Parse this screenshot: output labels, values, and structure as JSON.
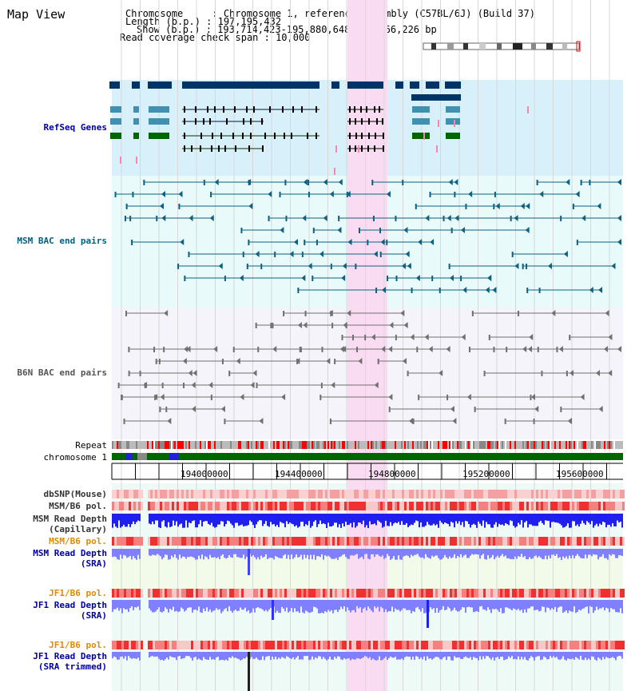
{
  "title": "Map View",
  "header": {
    "chromosome_label": "Chromosome     : ",
    "chromosome_value": "Chromosome 1, reference assembly (C57BL/6J) (Build 37)",
    "length_label": "Length (b.p.) : ",
    "length_value": "197,195,432",
    "show_label": "Show (b.p.) : ",
    "show_value": "193,714,423-195,880,648 : 2,166,226 bp",
    "coverage_label": "Read coverage check span : ",
    "coverage_value": "10,000"
  },
  "tracks": {
    "refseq": "RefSeq Genes",
    "msm_bac": "MSM BAC end pairs",
    "b6n_bac": "B6N BAC end pairs",
    "repeat": "Repeat",
    "chromosome": "chromosome 1",
    "dbsnp": "dbSNP(Mouse)",
    "msm_b6_pol": "MSM/B6 pol.",
    "msm_depth_cap_1": "MSM Read Depth",
    "msm_depth_cap_2": "(Capillary)",
    "msm_b6_pol_2": "MSM/B6 pol.",
    "msm_depth_sra_1": "MSM Read Depth",
    "msm_depth_sra_2": "(SRA)",
    "jf1_pol_1": "JF1/B6 pol.",
    "jf1_depth_sra_1": "JF1 Read Depth",
    "jf1_depth_sra_2": "(SRA)",
    "jf1_pol_2": "JF1/B6 pol.",
    "jf1_depth_trim_1": "JF1 Read Depth",
    "jf1_depth_trim_2": "(SRA trimmed)"
  },
  "axis_ticks": [
    "194000000",
    "194400000",
    "194800000",
    "195200000",
    "195600000"
  ],
  "colors": {
    "refseq_bg": "#d8f0fa",
    "msm_bg": "#e8fafa",
    "b6n_bg": "#f4f4fa",
    "highlight": "#fadcf2",
    "refseq_navy": "#003366",
    "refseq_teal": "#4090b0",
    "refseq_green": "#006600",
    "msm_line": "#106080",
    "b6n_line": "#707070",
    "chrom_green": "#006600",
    "depth_blue": "#2020ee",
    "depth_light": "#8080ff",
    "pol_red": "#ee3030"
  }
}
